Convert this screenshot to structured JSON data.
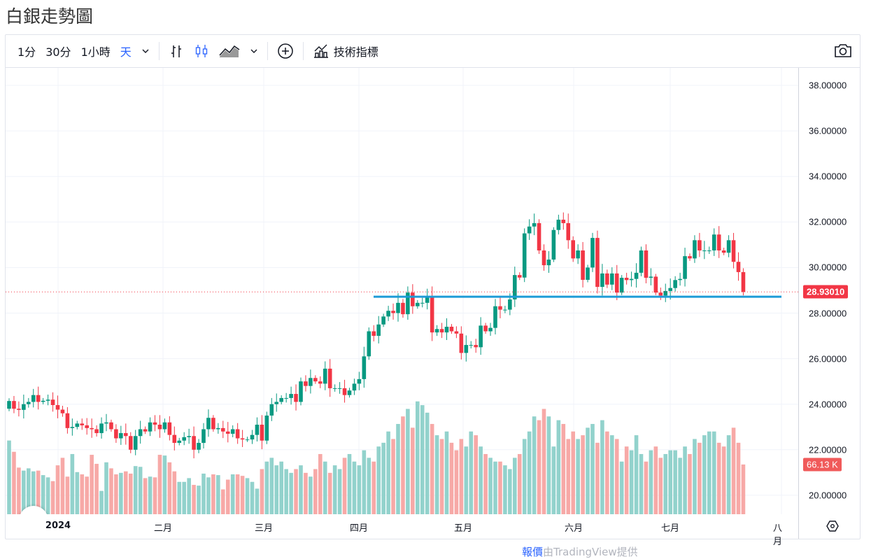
{
  "title": "白銀走勢圖",
  "toolbar": {
    "intervals": [
      "1分",
      "30分",
      "1小時",
      "天"
    ],
    "active_interval": "天",
    "indicators_label": "技術指標"
  },
  "colors": {
    "up": "#089981",
    "down": "#f23645",
    "up_vol": "#92d2cc",
    "down_vol": "#f7a9a7",
    "support_line": "#1e9bd7",
    "accent": "#2962ff"
  },
  "price_axis": {
    "ticks": [
      "38.00000",
      "36.00000",
      "34.00000",
      "32.00000",
      "30.00000",
      "28.00000",
      "26.00000",
      "24.00000",
      "22.00000",
      "20.00000"
    ]
  },
  "last_price": "28.93010",
  "last_volume": "66.13 K",
  "time_axis": [
    "2024",
    "二月",
    "三月",
    "四月",
    "五月",
    "六月",
    "七月",
    "八月"
  ],
  "footer": {
    "link": "報價",
    "text": "由TradingView提供"
  },
  "chart_data": {
    "type": "candlestick",
    "title": "白銀走勢圖",
    "interval": "天",
    "first_open": 23.8,
    "closes": [
      24.14,
      23.8,
      23.75,
      24.0,
      24.1,
      24.4,
      24.1,
      24.15,
      24.2,
      23.96,
      23.76,
      23.6,
      22.95,
      23.0,
      23.15,
      23.07,
      22.95,
      22.9,
      22.73,
      23.15,
      23.2,
      22.9,
      22.5,
      22.73,
      22.6,
      22.0,
      22.6,
      22.9,
      22.8,
      23.2,
      23.1,
      22.9,
      23.2,
      22.65,
      22.3,
      22.4,
      22.55,
      22.6,
      22.0,
      22.3,
      22.9,
      23.4,
      22.9,
      22.95,
      22.8,
      22.7,
      22.9,
      22.5,
      22.45,
      22.45,
      22.65,
      23.1,
      22.4,
      23.5,
      24.0,
      24.1,
      24.27,
      24.27,
      24.45,
      24.1,
      25.0,
      24.8,
      25.15,
      25.0,
      24.9,
      25.56,
      24.7,
      24.7,
      24.7,
      24.4,
      24.6,
      24.9,
      25.1,
      26.1,
      27.2,
      27.0,
      27.5,
      27.85,
      28.1,
      28.0,
      28.45,
      27.95,
      28.9,
      28.3,
      28.45,
      28.45,
      28.75,
      27.15,
      27.3,
      27.15,
      27.4,
      27.2,
      27.1,
      26.25,
      26.6,
      26.6,
      26.5,
      27.45,
      27.2,
      27.35,
      28.3,
      28.15,
      28.15,
      28.6,
      29.67,
      29.56,
      31.5,
      31.8,
      31.95,
      30.75,
      30.1,
      30.35,
      31.65,
      32.1,
      31.95,
      31.2,
      30.4,
      30.75,
      29.46,
      30.0,
      31.3,
      29.15,
      29.74,
      29.25,
      29.74,
      28.9,
      29.55,
      29.45,
      29.5,
      29.77,
      30.75,
      29.55,
      29.6,
      28.9,
      28.77,
      28.97,
      29.1,
      29.45,
      29.5,
      30.5,
      30.4,
      31.2,
      30.75,
      30.75,
      30.75,
      31.45,
      30.75,
      30.65,
      31.2,
      30.25,
      29.8,
      28.93
    ],
    "volumes_k": [
      98,
      83,
      62,
      58,
      61,
      57,
      58,
      52,
      49,
      44,
      65,
      75,
      50,
      80,
      56,
      53,
      50,
      79,
      67,
      31,
      69,
      61,
      53,
      55,
      57,
      54,
      64,
      63,
      48,
      50,
      49,
      79,
      78,
      69,
      57,
      43,
      43,
      48,
      39,
      38,
      54,
      49,
      53,
      52,
      33,
      46,
      53,
      53,
      51,
      48,
      43,
      34,
      60,
      70,
      75,
      65,
      70,
      60,
      55,
      60,
      65,
      55,
      50,
      60,
      80,
      70,
      55,
      65,
      60,
      75,
      80,
      70,
      65,
      85,
      75,
      70,
      90,
      95,
      110,
      100,
      120,
      130,
      140,
      115,
      150,
      145,
      135,
      120,
      105,
      100,
      110,
      95,
      85,
      100,
      90,
      110,
      105,
      90,
      80,
      75,
      70,
      70,
      65,
      60,
      75,
      80,
      100,
      110,
      130,
      125,
      140,
      130,
      90,
      125,
      120,
      100,
      110,
      100,
      105,
      115,
      120,
      95,
      125,
      110,
      105,
      100,
      70,
      90,
      85,
      105,
      80,
      70,
      85,
      90,
      75,
      80,
      85,
      85,
      75,
      90,
      80,
      100,
      95,
      105,
      110,
      110,
      95,
      90,
      105,
      115,
      95,
      66.13
    ],
    "support_level": 28.72,
    "ylim": [
      19.5,
      38.8
    ]
  }
}
